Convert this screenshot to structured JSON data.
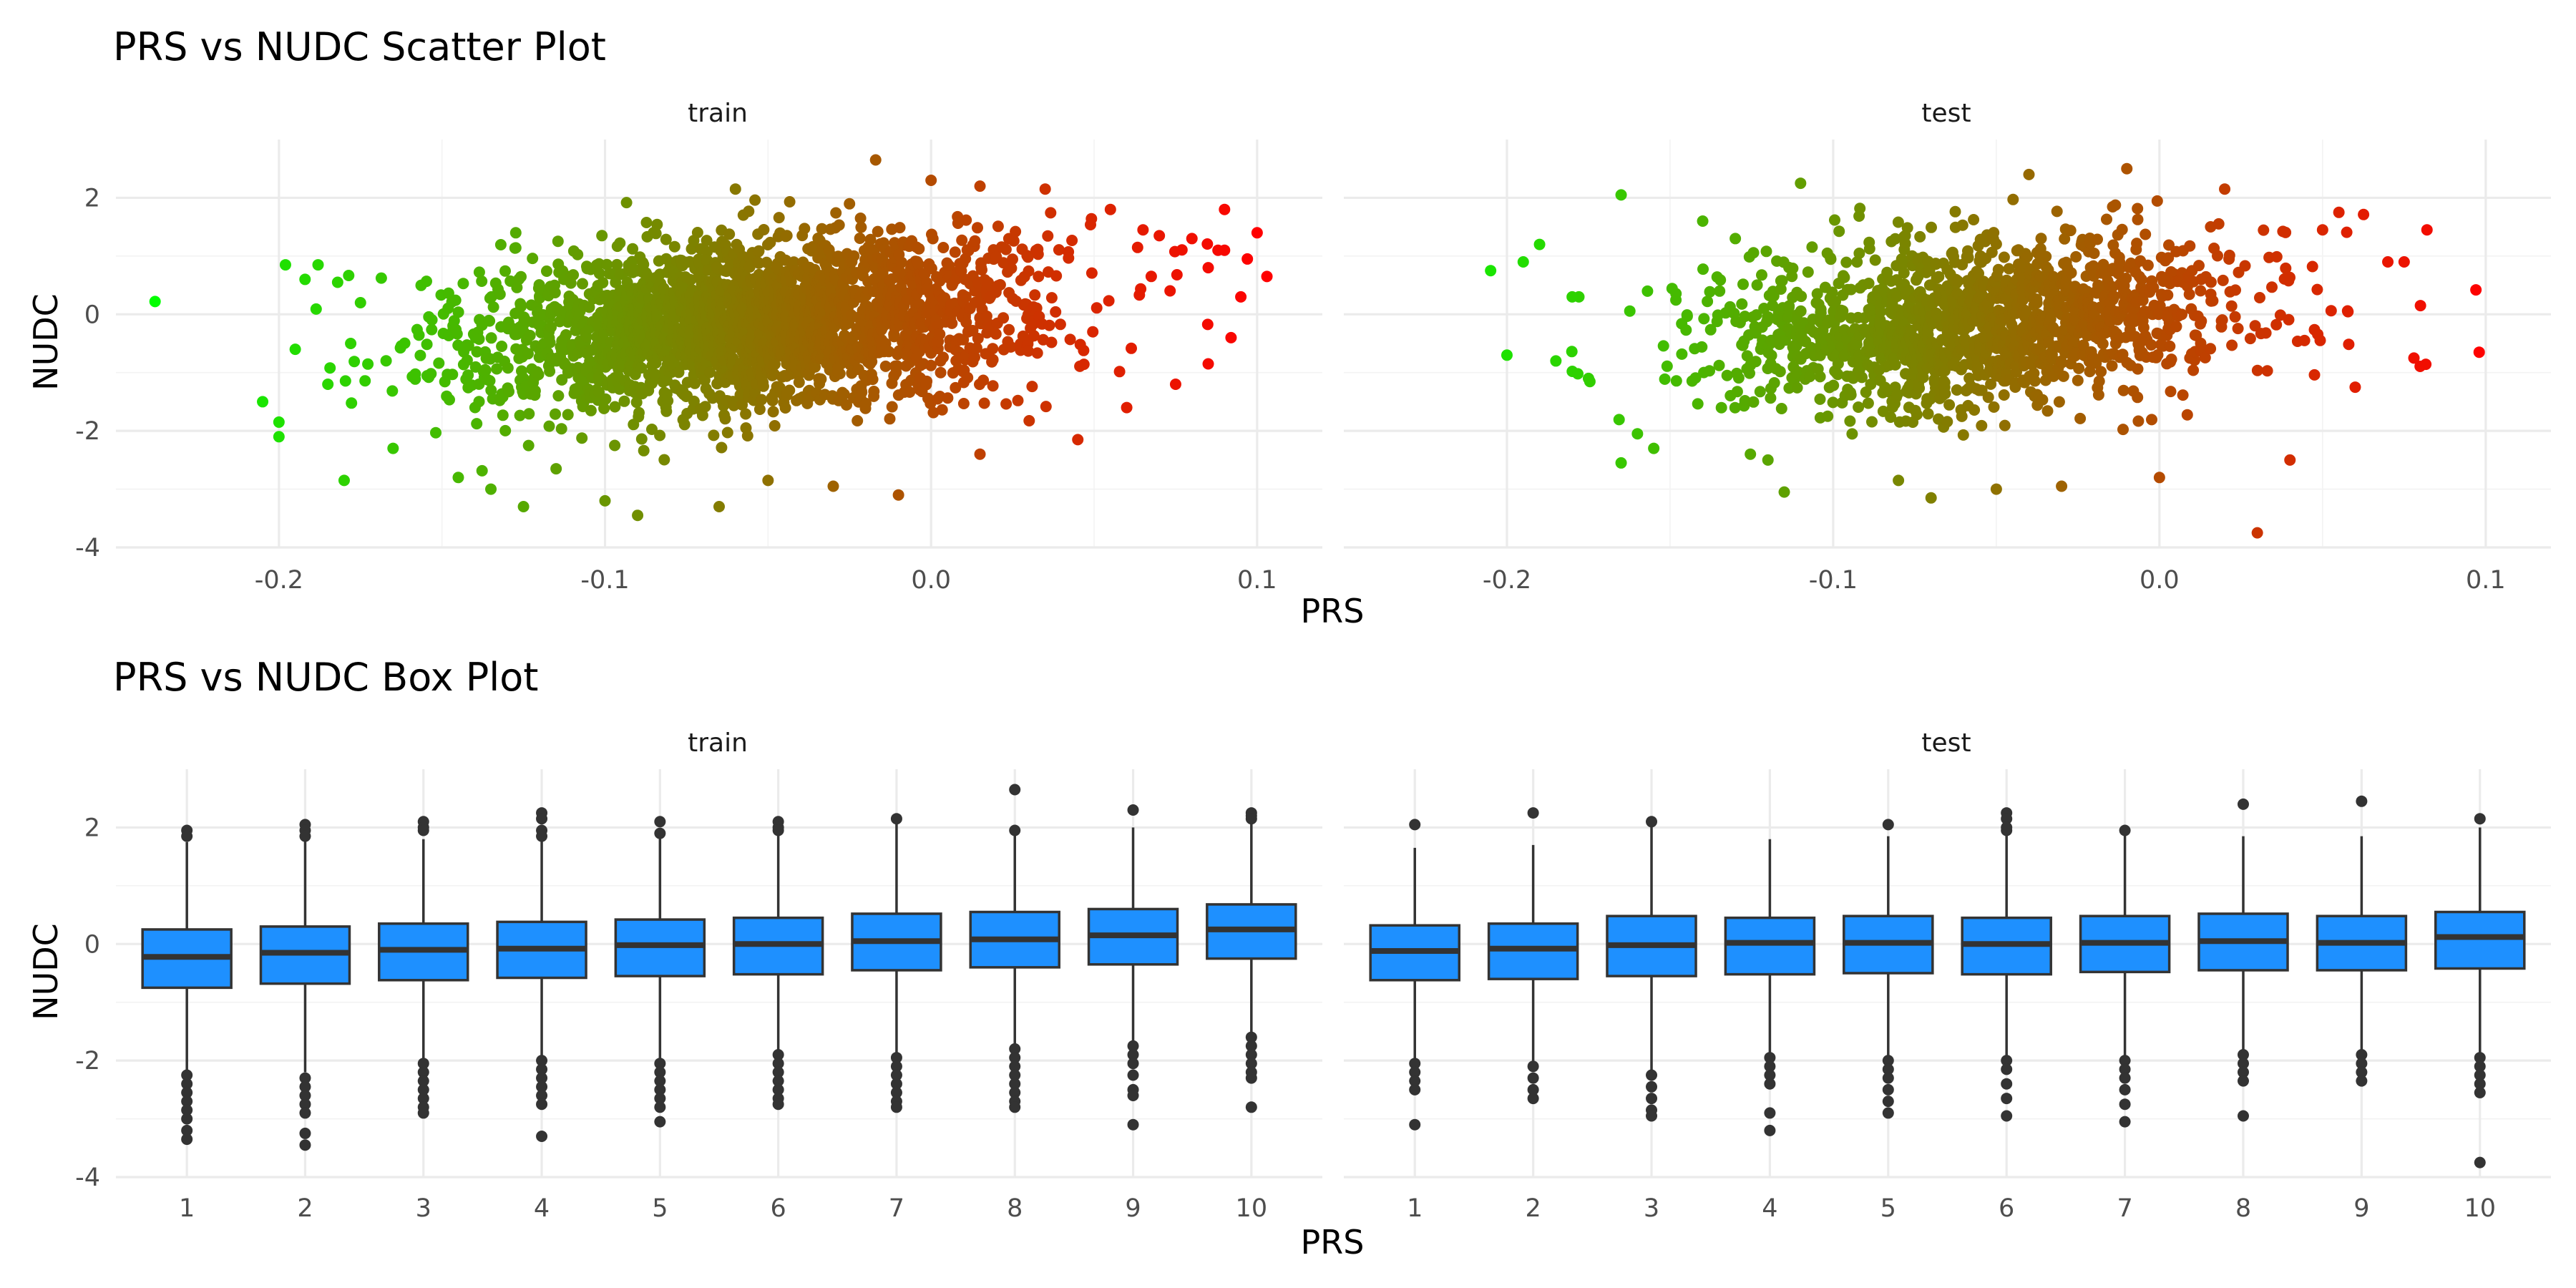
{
  "chart_data": [
    {
      "type": "scatter",
      "title": "PRS vs NUDC Scatter Plot",
      "xlabel": "PRS",
      "ylabel": "NUDC",
      "xlim": [
        -0.25,
        0.12
      ],
      "ylim": [
        -4.0,
        3.0
      ],
      "x_ticks": [
        -0.2,
        -0.1,
        0.0,
        0.1
      ],
      "x_tick_labels": [
        "-0.2",
        "-0.1",
        "0.0",
        "0.1"
      ],
      "y_ticks": [
        -4,
        -2,
        0,
        2
      ],
      "y_tick_labels": [
        "-4",
        "-2",
        "0",
        "2"
      ],
      "grid": true,
      "color_scale": {
        "low": "#00ff00",
        "high": "#ff0000",
        "low_value": -0.24,
        "high_value": 0.1
      },
      "facets": [
        {
          "label": "train",
          "x_center": -0.055,
          "x_sd": 0.042,
          "y_mean": -0.15,
          "y_sd": 0.72,
          "slope": 4.5,
          "n_bulk": 2600,
          "points": [
            {
              "x": -0.238,
              "y": 0.22
            },
            {
              "x": -0.205,
              "y": -1.5
            },
            {
              "x": -0.2,
              "y": -2.1
            },
            {
              "x": -0.2,
              "y": -1.85
            },
            {
              "x": -0.198,
              "y": 0.85
            },
            {
              "x": -0.195,
              "y": -0.6
            },
            {
              "x": -0.192,
              "y": 0.6
            },
            {
              "x": -0.188,
              "y": 0.85
            },
            {
              "x": -0.185,
              "y": -1.2
            },
            {
              "x": -0.182,
              "y": 0.55
            },
            {
              "x": -0.18,
              "y": -2.85
            },
            {
              "x": -0.178,
              "y": -0.5
            },
            {
              "x": -0.175,
              "y": 0.2
            },
            {
              "x": -0.165,
              "y": -2.3
            },
            {
              "x": -0.145,
              "y": -2.8
            },
            {
              "x": -0.135,
              "y": -3.0
            },
            {
              "x": -0.125,
              "y": -3.3
            },
            {
              "x": -0.115,
              "y": -2.65
            },
            {
              "x": -0.1,
              "y": -3.2
            },
            {
              "x": -0.09,
              "y": -3.45
            },
            {
              "x": -0.065,
              "y": -3.3
            },
            {
              "x": -0.06,
              "y": 2.15
            },
            {
              "x": -0.05,
              "y": -2.85
            },
            {
              "x": -0.03,
              "y": -2.95
            },
            {
              "x": -0.017,
              "y": 2.65
            },
            {
              "x": -0.01,
              "y": -3.1
            },
            {
              "x": 0.0,
              "y": 2.3
            },
            {
              "x": 0.015,
              "y": -2.4
            },
            {
              "x": 0.015,
              "y": 2.2
            },
            {
              "x": 0.035,
              "y": 2.15
            },
            {
              "x": 0.045,
              "y": -2.15
            },
            {
              "x": 0.055,
              "y": 1.8
            },
            {
              "x": 0.06,
              "y": -1.6
            },
            {
              "x": 0.065,
              "y": 1.45
            },
            {
              "x": 0.07,
              "y": 1.35
            },
            {
              "x": 0.075,
              "y": -1.2
            },
            {
              "x": 0.08,
              "y": 1.3
            },
            {
              "x": 0.085,
              "y": 0.8
            },
            {
              "x": 0.085,
              "y": -0.85
            },
            {
              "x": 0.088,
              "y": 1.1
            },
            {
              "x": 0.09,
              "y": 1.1
            },
            {
              "x": 0.09,
              "y": 1.8
            },
            {
              "x": 0.092,
              "y": -0.4
            },
            {
              "x": 0.095,
              "y": 0.3
            },
            {
              "x": 0.097,
              "y": 0.95
            },
            {
              "x": 0.1,
              "y": 1.4
            },
            {
              "x": 0.103,
              "y": 0.65
            }
          ]
        },
        {
          "label": "test",
          "x_center": -0.055,
          "x_sd": 0.04,
          "y_mean": -0.15,
          "y_sd": 0.72,
          "slope": 4.5,
          "n_bulk": 1500,
          "points": [
            {
              "x": -0.205,
              "y": 0.75
            },
            {
              "x": -0.2,
              "y": -0.7
            },
            {
              "x": -0.195,
              "y": 0.9
            },
            {
              "x": -0.19,
              "y": 1.2
            },
            {
              "x": -0.185,
              "y": -0.8
            },
            {
              "x": -0.18,
              "y": 0.3
            },
            {
              "x": -0.175,
              "y": -1.1
            },
            {
              "x": -0.165,
              "y": 2.05
            },
            {
              "x": -0.165,
              "y": -2.55
            },
            {
              "x": -0.16,
              "y": -2.05
            },
            {
              "x": -0.155,
              "y": -2.3
            },
            {
              "x": -0.14,
              "y": 1.6
            },
            {
              "x": -0.13,
              "y": 1.3
            },
            {
              "x": -0.12,
              "y": -2.5
            },
            {
              "x": -0.115,
              "y": -3.05
            },
            {
              "x": -0.11,
              "y": 2.25
            },
            {
              "x": -0.08,
              "y": -2.85
            },
            {
              "x": -0.07,
              "y": -3.15
            },
            {
              "x": -0.05,
              "y": -3.0
            },
            {
              "x": -0.04,
              "y": 2.4
            },
            {
              "x": -0.03,
              "y": -2.95
            },
            {
              "x": -0.01,
              "y": 2.5
            },
            {
              "x": 0.0,
              "y": -2.8
            },
            {
              "x": 0.02,
              "y": 2.15
            },
            {
              "x": 0.03,
              "y": -3.75
            },
            {
              "x": 0.04,
              "y": -2.5
            },
            {
              "x": 0.05,
              "y": 1.45
            },
            {
              "x": 0.055,
              "y": 1.75
            },
            {
              "x": 0.06,
              "y": -1.25
            },
            {
              "x": 0.07,
              "y": 0.9
            },
            {
              "x": 0.075,
              "y": 0.9
            },
            {
              "x": 0.078,
              "y": -0.75
            },
            {
              "x": 0.08,
              "y": 0.15
            },
            {
              "x": 0.082,
              "y": 1.45
            },
            {
              "x": 0.097,
              "y": 0.42
            },
            {
              "x": 0.098,
              "y": -0.65
            }
          ]
        }
      ]
    },
    {
      "type": "box",
      "title": "PRS vs NUDC Box Plot",
      "xlabel": "PRS",
      "ylabel": "NUDC",
      "categories": [
        "1",
        "2",
        "3",
        "4",
        "5",
        "6",
        "7",
        "8",
        "9",
        "10"
      ],
      "ylim": [
        -4.0,
        3.0
      ],
      "y_ticks": [
        -4,
        -2,
        0,
        2
      ],
      "y_tick_labels": [
        "-4",
        "-2",
        "0",
        "2"
      ],
      "grid": true,
      "box_color": "#1E90FF",
      "line_color": "#333333",
      "facets": [
        {
          "label": "train",
          "boxes": [
            {
              "q1": -0.75,
              "median": -0.22,
              "q3": 0.25,
              "whisker_low": -2.2,
              "whisker_high": 1.75,
              "outliers": [
                1.95,
                1.85,
                -2.25,
                -2.4,
                -2.55,
                -2.7,
                -2.85,
                -3.0,
                -3.2,
                -3.35
              ]
            },
            {
              "q1": -0.68,
              "median": -0.15,
              "q3": 0.3,
              "whisker_low": -2.2,
              "whisker_high": 1.8,
              "outliers": [
                2.05,
                1.95,
                1.85,
                -2.3,
                -2.45,
                -2.6,
                -2.75,
                -2.9,
                -3.25,
                -3.45
              ]
            },
            {
              "q1": -0.62,
              "median": -0.1,
              "q3": 0.35,
              "whisker_low": -2.05,
              "whisker_high": 1.8,
              "outliers": [
                2.1,
                2.0,
                1.95,
                -2.05,
                -2.2,
                -2.35,
                -2.5,
                -2.65,
                -2.8,
                -2.9
              ]
            },
            {
              "q1": -0.58,
              "median": -0.08,
              "q3": 0.38,
              "whisker_low": -2.0,
              "whisker_high": 1.8,
              "outliers": [
                2.25,
                2.15,
                1.95,
                1.85,
                -2.0,
                -2.15,
                -2.3,
                -2.45,
                -2.6,
                -2.75,
                -3.3
              ]
            },
            {
              "q1": -0.55,
              "median": -0.02,
              "q3": 0.42,
              "whisker_low": -2.05,
              "whisker_high": 1.9,
              "outliers": [
                2.1,
                1.9,
                -2.05,
                -2.2,
                -2.35,
                -2.5,
                -2.65,
                -2.8,
                -3.05
              ]
            },
            {
              "q1": -0.52,
              "median": 0.0,
              "q3": 0.45,
              "whisker_low": -1.9,
              "whisker_high": 1.9,
              "outliers": [
                2.1,
                2.0,
                1.95,
                -1.9,
                -2.05,
                -2.2,
                -2.35,
                -2.5,
                -2.65,
                -2.75
              ]
            },
            {
              "q1": -0.45,
              "median": 0.05,
              "q3": 0.52,
              "whisker_low": -1.95,
              "whisker_high": 2.1,
              "outliers": [
                2.15,
                -1.95,
                -2.1,
                -2.25,
                -2.4,
                -2.55,
                -2.7,
                -2.8
              ]
            },
            {
              "q1": -0.4,
              "median": 0.08,
              "q3": 0.55,
              "whisker_low": -1.75,
              "whisker_high": 1.9,
              "outliers": [
                2.65,
                1.95,
                -1.8,
                -1.95,
                -2.1,
                -2.25,
                -2.4,
                -2.55,
                -2.7,
                -2.8
              ]
            },
            {
              "q1": -0.35,
              "median": 0.15,
              "q3": 0.6,
              "whisker_low": -1.7,
              "whisker_high": 2.0,
              "outliers": [
                2.3,
                -1.75,
                -1.9,
                -2.05,
                -2.25,
                -2.5,
                -2.6,
                -3.1
              ]
            },
            {
              "q1": -0.25,
              "median": 0.25,
              "q3": 0.68,
              "whisker_low": -1.55,
              "whisker_high": 2.1,
              "outliers": [
                2.25,
                2.2,
                2.15,
                -1.6,
                -1.75,
                -1.9,
                -2.05,
                -2.2,
                -2.3,
                -2.8
              ]
            }
          ]
        },
        {
          "label": "test",
          "boxes": [
            {
              "q1": -0.62,
              "median": -0.12,
              "q3": 0.32,
              "whisker_low": -2.0,
              "whisker_high": 1.65,
              "outliers": [
                2.05,
                -2.05,
                -2.2,
                -2.35,
                -2.5,
                -3.1
              ]
            },
            {
              "q1": -0.6,
              "median": -0.08,
              "q3": 0.35,
              "whisker_low": -2.05,
              "whisker_high": 1.7,
              "outliers": [
                2.25,
                -2.1,
                -2.3,
                -2.5,
                -2.65
              ]
            },
            {
              "q1": -0.55,
              "median": -0.02,
              "q3": 0.48,
              "whisker_low": -2.2,
              "whisker_high": 2.1,
              "outliers": [
                2.1,
                -2.25,
                -2.45,
                -2.65,
                -2.85,
                -2.95
              ]
            },
            {
              "q1": -0.52,
              "median": 0.02,
              "q3": 0.45,
              "whisker_low": -1.9,
              "whisker_high": 1.8,
              "outliers": [
                -1.95,
                -2.1,
                -2.25,
                -2.4,
                -2.9,
                -3.2
              ]
            },
            {
              "q1": -0.5,
              "median": 0.02,
              "q3": 0.48,
              "whisker_low": -1.95,
              "whisker_high": 1.85,
              "outliers": [
                2.05,
                -2.0,
                -2.15,
                -2.3,
                -2.5,
                -2.7,
                -2.9
              ]
            },
            {
              "q1": -0.52,
              "median": 0.0,
              "q3": 0.45,
              "whisker_low": -1.95,
              "whisker_high": 1.9,
              "outliers": [
                2.25,
                2.15,
                2.0,
                1.95,
                -2.0,
                -2.15,
                -2.4,
                -2.65,
                -2.95
              ]
            },
            {
              "q1": -0.48,
              "median": 0.02,
              "q3": 0.48,
              "whisker_low": -1.95,
              "whisker_high": 1.9,
              "outliers": [
                1.95,
                -2.0,
                -2.15,
                -2.3,
                -2.5,
                -2.75,
                -3.05
              ]
            },
            {
              "q1": -0.45,
              "median": 0.05,
              "q3": 0.52,
              "whisker_low": -1.85,
              "whisker_high": 1.85,
              "outliers": [
                2.4,
                -1.9,
                -2.05,
                -2.2,
                -2.35,
                -2.95
              ]
            },
            {
              "q1": -0.45,
              "median": 0.02,
              "q3": 0.48,
              "whisker_low": -1.85,
              "whisker_high": 1.85,
              "outliers": [
                2.45,
                -1.9,
                -2.05,
                -2.2,
                -2.35
              ]
            },
            {
              "q1": -0.42,
              "median": 0.12,
              "q3": 0.55,
              "whisker_low": -1.9,
              "whisker_high": 2.0,
              "outliers": [
                2.15,
                -1.95,
                -2.1,
                -2.25,
                -2.4,
                -2.55,
                -3.75
              ]
            }
          ]
        }
      ]
    }
  ]
}
